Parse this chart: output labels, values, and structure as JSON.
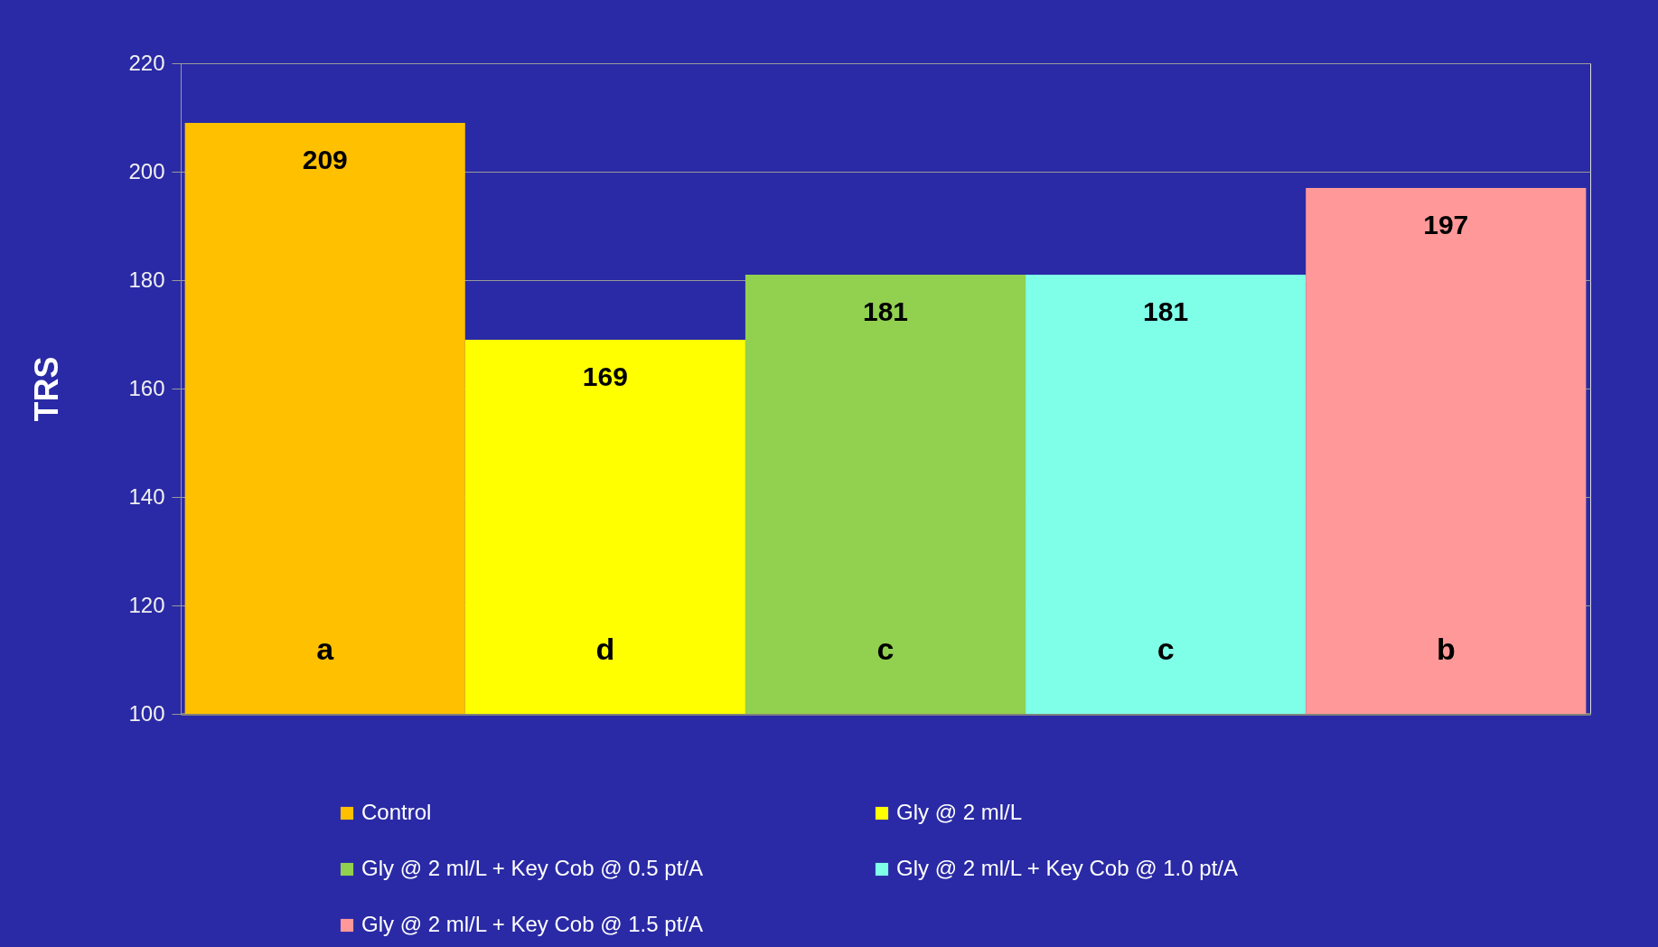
{
  "chart_data": {
    "type": "bar",
    "ylabel": "TRS",
    "categories": [
      null
    ],
    "series": [
      {
        "name": "Control",
        "color": "#ffc000",
        "values": [
          209
        ]
      },
      {
        "name": "Gly @ 2 ml/L",
        "color": "#ffff00",
        "values": [
          169
        ]
      },
      {
        "name": "Gly @ 2 ml/L + Key Cob @ 0.5 pt/A",
        "color": "#92d050",
        "values": [
          181
        ]
      },
      {
        "name": "Gly @ 2 ml/L + Key Cob @ 1.0 pt/A",
        "color": "#7fffe8",
        "values": [
          181
        ]
      },
      {
        "name": "Gly @ 2 ml/L + Key Cob @ 1.5 pt/A",
        "color": "#ff9999",
        "values": [
          197
        ]
      }
    ],
    "ylim": [
      100,
      220
    ],
    "yticks": [
      100,
      120,
      140,
      160,
      180,
      200,
      220
    ],
    "data_labels": true,
    "annotations": [
      "a",
      "d",
      "c",
      "c",
      "b"
    ],
    "grid": "y",
    "legend": "bottom",
    "tick_labels": "y"
  }
}
